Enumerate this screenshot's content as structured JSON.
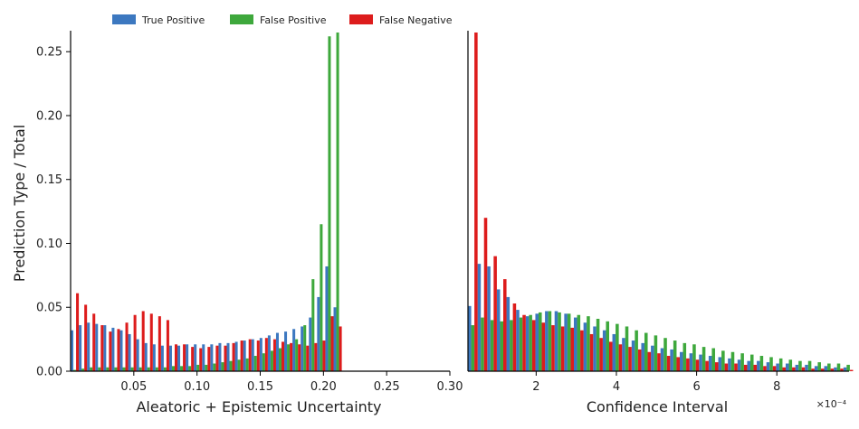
{
  "chart_data": {
    "type": "bar",
    "ylabel": "Prediction Type / Total",
    "ylim": [
      0,
      0.265
    ],
    "yticks": [
      "0.00",
      "0.05",
      "0.10",
      "0.15",
      "0.20",
      "0.25"
    ],
    "legend": {
      "placement": "top",
      "entries": [
        {
          "name": "True Positive",
          "color": "#3c78c0"
        },
        {
          "name": "False Positive",
          "color": "#3ea83c"
        },
        {
          "name": "False Negative",
          "color": "#dd1c1c"
        }
      ]
    },
    "panels": [
      {
        "xlabel": "Aleatoric + Epistemic Uncertainty",
        "xlim": [
          0.0,
          0.3
        ],
        "xticks": [
          "0.05",
          "0.10",
          "0.15",
          "0.20",
          "0.25",
          "0.30"
        ],
        "bin_start": 0.0,
        "bin_width": 0.0065,
        "series": [
          {
            "name": "True Positive",
            "color": "#3c78c0",
            "values": [
              0.032,
              0.036,
              0.038,
              0.037,
              0.036,
              0.034,
              0.032,
              0.029,
              0.025,
              0.022,
              0.021,
              0.02,
              0.02,
              0.02,
              0.021,
              0.021,
              0.021,
              0.021,
              0.022,
              0.022,
              0.023,
              0.024,
              0.025,
              0.026,
              0.028,
              0.03,
              0.031,
              0.033,
              0.035,
              0.042,
              0.058,
              0.082,
              0.05
            ]
          },
          {
            "name": "False Positive",
            "color": "#3ea83c",
            "values": [
              0.001,
              0.002,
              0.003,
              0.003,
              0.003,
              0.003,
              0.003,
              0.003,
              0.003,
              0.003,
              0.003,
              0.003,
              0.004,
              0.004,
              0.004,
              0.005,
              0.005,
              0.006,
              0.007,
              0.008,
              0.009,
              0.01,
              0.012,
              0.014,
              0.016,
              0.018,
              0.021,
              0.025,
              0.036,
              0.072,
              0.115,
              0.262,
              0.265
            ]
          },
          {
            "name": "False Negative",
            "color": "#dd1c1c",
            "values": [
              0.061,
              0.052,
              0.045,
              0.036,
              0.031,
              0.033,
              0.038,
              0.044,
              0.047,
              0.045,
              0.043,
              0.04,
              0.021,
              0.021,
              0.019,
              0.018,
              0.019,
              0.02,
              0.02,
              0.022,
              0.024,
              0.025,
              0.024,
              0.026,
              0.025,
              0.023,
              0.022,
              0.021,
              0.02,
              0.022,
              0.024,
              0.043,
              0.035
            ]
          }
        ]
      },
      {
        "xlabel": "Confidence Interval",
        "x_exponent": "×10⁻⁴",
        "xlim": [
          0.3,
          9.8
        ],
        "xticks": [
          "2",
          "4",
          "6",
          "8"
        ],
        "bin_start": 0.3,
        "bin_width": 0.24,
        "series": [
          {
            "name": "True Positive",
            "color": "#3c78c0",
            "values": [
              0.051,
              0.084,
              0.082,
              0.064,
              0.058,
              0.048,
              0.043,
              0.045,
              0.047,
              0.047,
              0.045,
              0.042,
              0.038,
              0.035,
              0.032,
              0.029,
              0.026,
              0.024,
              0.022,
              0.02,
              0.018,
              0.017,
              0.015,
              0.014,
              0.013,
              0.012,
              0.011,
              0.01,
              0.009,
              0.008,
              0.008,
              0.007,
              0.006,
              0.006,
              0.005,
              0.005,
              0.004,
              0.004,
              0.003,
              0.003
            ]
          },
          {
            "name": "False Positive",
            "color": "#3ea83c",
            "values": [
              0.036,
              0.042,
              0.04,
              0.039,
              0.04,
              0.042,
              0.044,
              0.046,
              0.047,
              0.046,
              0.045,
              0.044,
              0.043,
              0.041,
              0.039,
              0.037,
              0.035,
              0.032,
              0.03,
              0.028,
              0.026,
              0.024,
              0.022,
              0.021,
              0.019,
              0.018,
              0.016,
              0.015,
              0.014,
              0.013,
              0.012,
              0.011,
              0.01,
              0.009,
              0.008,
              0.008,
              0.007,
              0.006,
              0.006,
              0.005
            ]
          },
          {
            "name": "False Negative",
            "color": "#dd1c1c",
            "values": [
              0.265,
              0.12,
              0.09,
              0.072,
              0.053,
              0.044,
              0.04,
              0.038,
              0.036,
              0.035,
              0.034,
              0.032,
              0.029,
              0.026,
              0.023,
              0.021,
              0.019,
              0.017,
              0.015,
              0.014,
              0.012,
              0.011,
              0.01,
              0.009,
              0.008,
              0.007,
              0.006,
              0.006,
              0.005,
              0.005,
              0.004,
              0.004,
              0.003,
              0.003,
              0.003,
              0.002,
              0.002,
              0.002,
              0.002,
              0.001
            ]
          }
        ]
      }
    ]
  }
}
